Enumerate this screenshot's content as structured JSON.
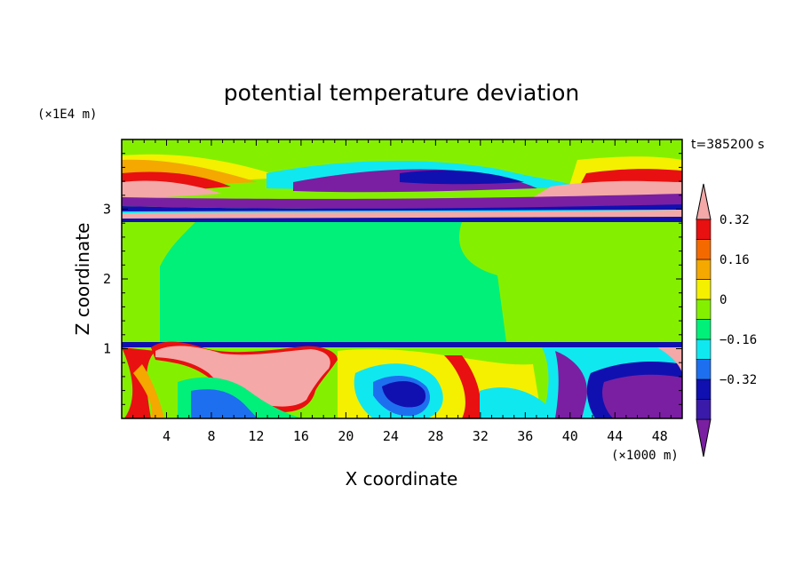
{
  "chart_data": {
    "type": "heatmap",
    "title": "potential temperature deviation",
    "xlabel": "X coordinate",
    "ylabel": "Z coordinate",
    "x_unit": "(×1000 m)",
    "y_unit": "(×1E4 m)",
    "time_label": "t=385200 s",
    "xlim": [
      0,
      50
    ],
    "ylim": [
      0,
      4
    ],
    "x_ticks": [
      "4",
      "8",
      "12",
      "16",
      "20",
      "24",
      "28",
      "32",
      "36",
      "40",
      "44",
      "48"
    ],
    "y_ticks": [
      "1",
      "2",
      "3"
    ],
    "colorbar": {
      "levels": [
        -0.48,
        -0.4,
        -0.32,
        -0.24,
        -0.16,
        -0.08,
        0,
        0.08,
        0.16,
        0.24,
        0.32,
        0.4
      ],
      "labels": [
        "0.32",
        "0.16",
        "0",
        "−0.16",
        "−0.32"
      ],
      "colors": [
        "#7a1fa2",
        "#3a1aa8",
        "#1010b0",
        "#1e6ff0",
        "#10e8f0",
        "#00f07a",
        "#84f000",
        "#f4f000",
        "#f4a800",
        "#f46a00",
        "#e81010",
        "#f4a8a8"
      ]
    },
    "fields": {
      "upper_layer_base": "#84f000",
      "middle_layer_base": "#00f07a",
      "lower_layer_base": "#10e8f0"
    }
  }
}
